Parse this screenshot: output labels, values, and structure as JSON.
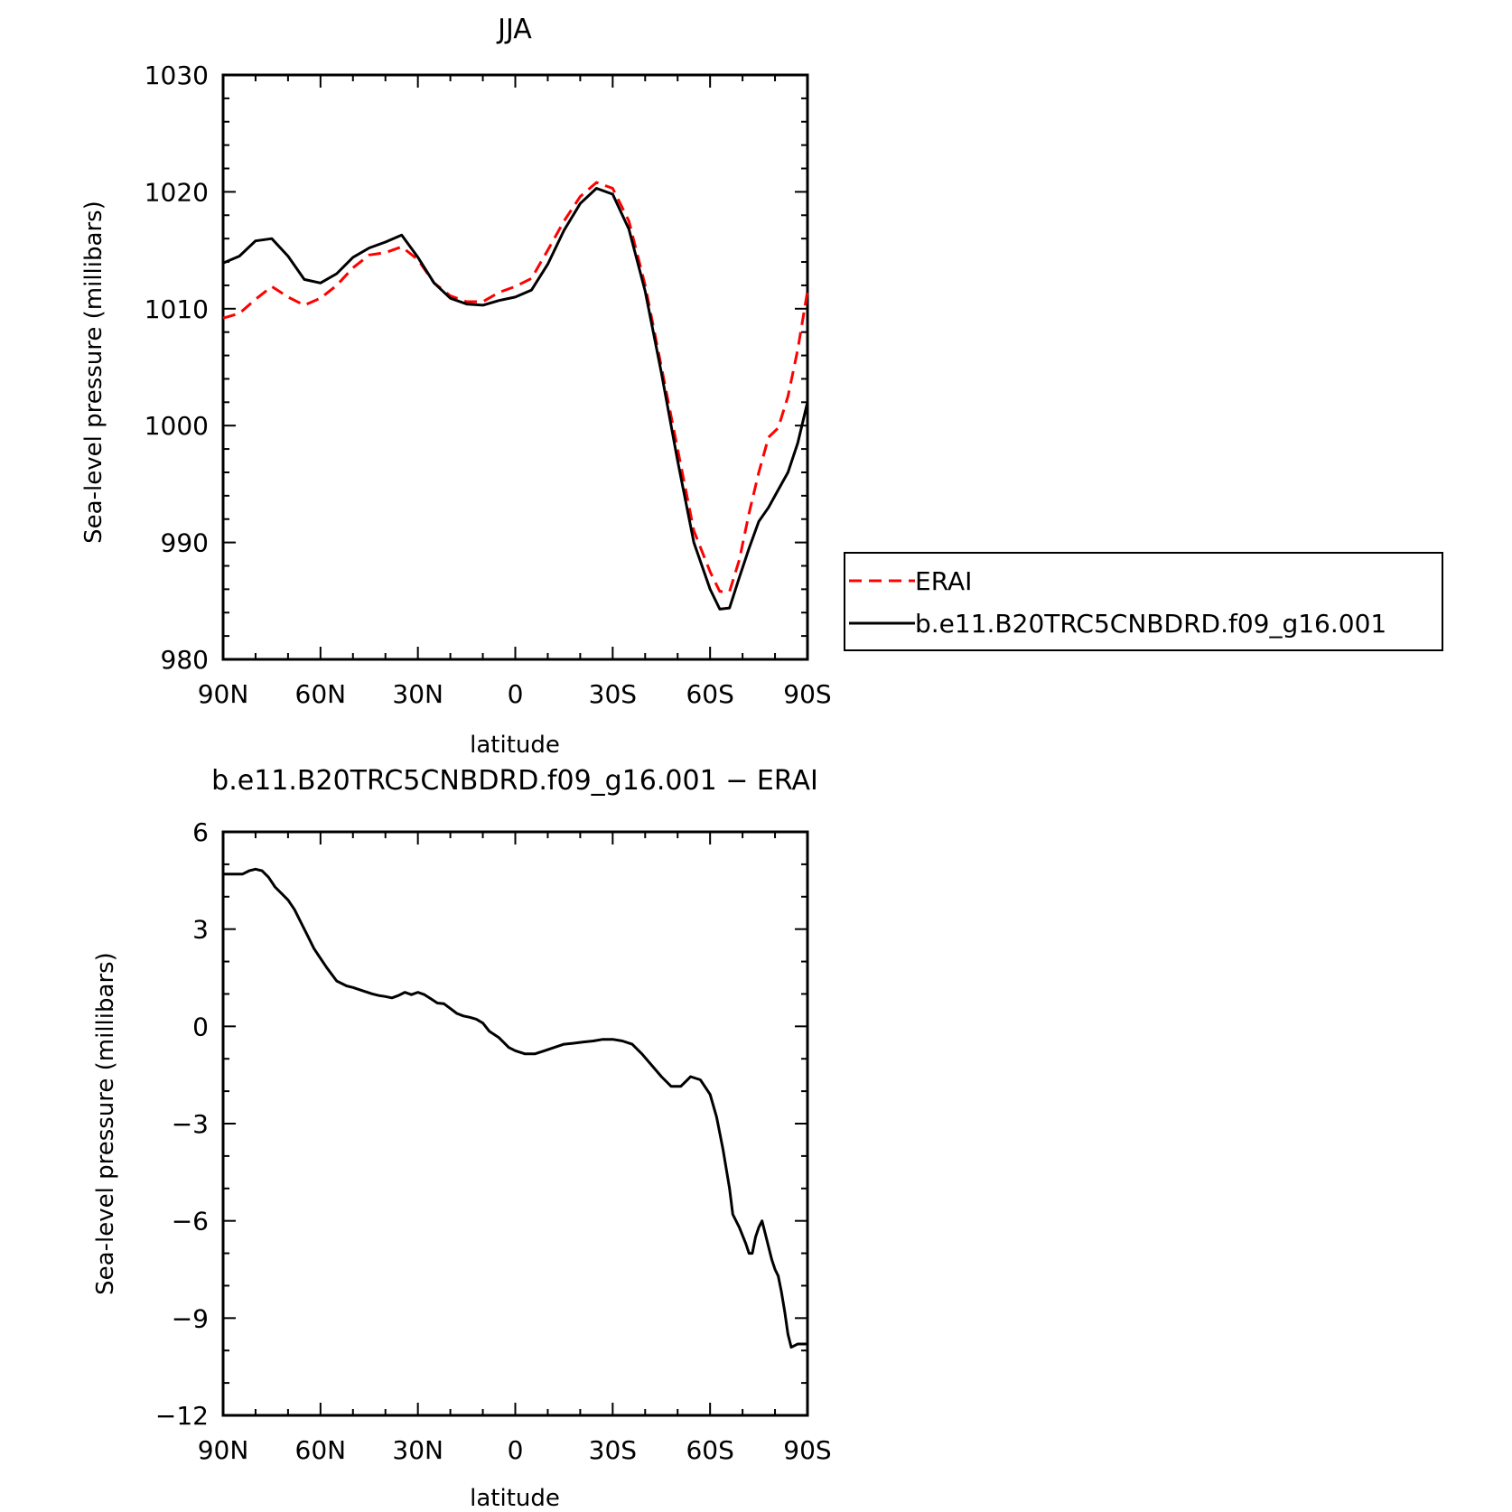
{
  "chart_data": [
    {
      "type": "line",
      "title": "JJA",
      "xlabel": "latitude",
      "ylabel": "Sea-level pressure (millibars)",
      "xlim": [
        90,
        -90
      ],
      "ylim": [
        980,
        1030
      ],
      "xticks": [
        90,
        60,
        30,
        0,
        -30,
        -60,
        -90
      ],
      "xtick_labels": [
        "90N",
        "60N",
        "30N",
        "0",
        "30S",
        "60S",
        "90S"
      ],
      "yticks": [
        980,
        990,
        1000,
        1010,
        1020,
        1030
      ],
      "ytick_labels": [
        "980",
        "990",
        "1000",
        "1010",
        "1020",
        "1030"
      ],
      "grid": false,
      "legend_position": "outside-right",
      "series": [
        {
          "name": "ERAI",
          "color": "#ff0000",
          "dashed": true,
          "x": [
            90,
            85,
            80,
            75,
            70,
            65,
            60,
            55,
            50,
            45,
            40,
            35,
            30,
            25,
            20,
            15,
            10,
            5,
            0,
            -5,
            -10,
            -15,
            -20,
            -25,
            -30,
            -35,
            -40,
            -45,
            -50,
            -55,
            -60,
            -63,
            -66,
            -69,
            -72,
            -75,
            -78,
            -81,
            -84,
            -87,
            -90
          ],
          "y": [
            1009.2,
            1009.6,
            1010.8,
            1011.9,
            1011.0,
            1010.3,
            1010.9,
            1012.0,
            1013.5,
            1014.6,
            1014.8,
            1015.3,
            1014.2,
            1012.2,
            1011.1,
            1010.6,
            1010.6,
            1011.4,
            1011.9,
            1012.6,
            1015.0,
            1017.5,
            1019.6,
            1020.8,
            1020.3,
            1017.5,
            1012.0,
            1005.0,
            998.0,
            991.0,
            987.5,
            985.8,
            985.8,
            988.5,
            992.5,
            996.0,
            999.0,
            999.8,
            1002.5,
            1006.5,
            1011.5
          ]
        },
        {
          "name": "b.e11.B20TRC5CNBDRD.f09_g16.001",
          "color": "#000000",
          "dashed": false,
          "x": [
            90,
            85,
            80,
            75,
            70,
            65,
            60,
            55,
            50,
            45,
            40,
            35,
            30,
            25,
            20,
            15,
            10,
            5,
            0,
            -5,
            -10,
            -15,
            -20,
            -25,
            -30,
            -35,
            -40,
            -45,
            -50,
            -55,
            -60,
            -63,
            -66,
            -69,
            -72,
            -75,
            -78,
            -81,
            -84,
            -87,
            -90
          ],
          "y": [
            1013.9,
            1014.5,
            1015.8,
            1016.0,
            1014.5,
            1012.5,
            1012.2,
            1013.0,
            1014.4,
            1015.2,
            1015.7,
            1016.3,
            1014.4,
            1012.2,
            1010.9,
            1010.4,
            1010.3,
            1010.7,
            1011.0,
            1011.6,
            1013.8,
            1016.7,
            1019.0,
            1020.3,
            1019.8,
            1016.8,
            1011.5,
            1004.5,
            997.0,
            990.0,
            986.0,
            984.3,
            984.4,
            987.0,
            989.5,
            991.8,
            993.0,
            994.5,
            996.0,
            998.5,
            1002.0
          ]
        }
      ]
    },
    {
      "type": "line",
      "title": "b.e11.B20TRC5CNBDRD.f09_g16.001 − ERAI",
      "xlabel": "latitude",
      "ylabel": "Sea-level pressure (millibars)",
      "xlim": [
        90,
        -90
      ],
      "ylim": [
        -12,
        6
      ],
      "xticks": [
        90,
        60,
        30,
        0,
        -30,
        -60,
        -90
      ],
      "xtick_labels": [
        "90N",
        "60N",
        "30N",
        "0",
        "30S",
        "60S",
        "90S"
      ],
      "yticks": [
        -12,
        -9,
        -6,
        -3,
        0,
        3,
        6
      ],
      "ytick_labels": [
        "−12",
        "−9",
        "−6",
        "−3",
        "0",
        "3",
        "6"
      ],
      "grid": false,
      "series": [
        {
          "color": "#000000",
          "dashed": false,
          "x": [
            90,
            87,
            84,
            82,
            80,
            78,
            76,
            74,
            72,
            70,
            68,
            66,
            64,
            62,
            60,
            58,
            55,
            52,
            50,
            47,
            44,
            42,
            40,
            38,
            36,
            34,
            32,
            30,
            28,
            26,
            24,
            22,
            20,
            18,
            16,
            14,
            12,
            10,
            8,
            5,
            2,
            0,
            -3,
            -6,
            -9,
            -12,
            -15,
            -18,
            -21,
            -24,
            -27,
            -30,
            -33,
            -36,
            -39,
            -42,
            -45,
            -48,
            -51,
            -54,
            -57,
            -60,
            -62,
            -64,
            -66,
            -67,
            -69,
            -71,
            -72,
            -73,
            -74,
            -75,
            -76,
            -77,
            -78,
            -79,
            -80,
            -81,
            -82,
            -83,
            -84,
            -85,
            -86,
            -87,
            -88,
            -89,
            -90
          ],
          "y": [
            4.7,
            4.7,
            4.7,
            4.8,
            4.85,
            4.8,
            4.6,
            4.3,
            4.1,
            3.9,
            3.6,
            3.2,
            2.8,
            2.4,
            2.1,
            1.8,
            1.4,
            1.25,
            1.2,
            1.1,
            1.0,
            0.95,
            0.92,
            0.88,
            0.95,
            1.05,
            0.98,
            1.05,
            0.98,
            0.85,
            0.72,
            0.7,
            0.55,
            0.4,
            0.32,
            0.28,
            0.22,
            0.1,
            -0.15,
            -0.35,
            -0.65,
            -0.75,
            -0.85,
            -0.85,
            -0.75,
            -0.65,
            -0.55,
            -0.52,
            -0.48,
            -0.45,
            -0.4,
            -0.4,
            -0.45,
            -0.55,
            -0.85,
            -1.2,
            -1.55,
            -1.85,
            -1.85,
            -1.55,
            -1.65,
            -2.1,
            -2.8,
            -3.8,
            -5.0,
            -5.8,
            -6.2,
            -6.7,
            -7.0,
            -7.0,
            -6.5,
            -6.2,
            -6.0,
            -6.4,
            -6.8,
            -7.2,
            -7.5,
            -7.7,
            -8.2,
            -8.8,
            -9.5,
            -9.9,
            -9.85,
            -9.8,
            -9.8,
            -9.8,
            -9.8
          ]
        }
      ]
    }
  ]
}
